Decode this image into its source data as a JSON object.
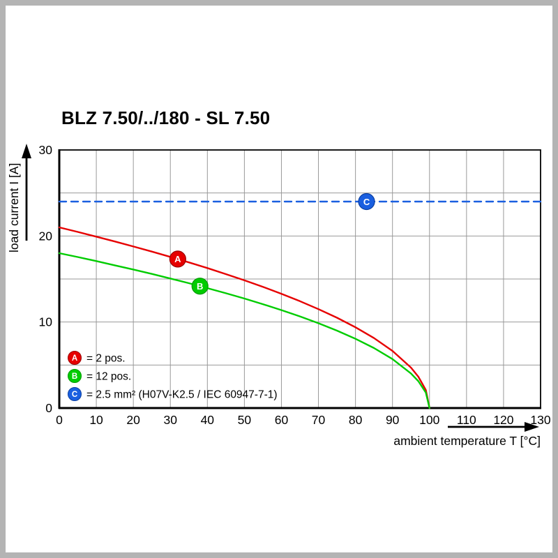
{
  "chart_data": {
    "type": "line",
    "title": "BLZ 7.50/../180 - SL 7.50",
    "xlabel": "ambient temperature T [°C]",
    "ylabel": "load current I [A]",
    "xlim": [
      0,
      130
    ],
    "ylim": [
      0,
      30
    ],
    "x_ticks": [
      0,
      10,
      20,
      30,
      40,
      50,
      60,
      70,
      80,
      90,
      100,
      110,
      120,
      130
    ],
    "y_ticks": [
      0,
      10,
      20,
      30
    ],
    "grid": {
      "x_step": 10,
      "y_step": 5,
      "color": "#999999",
      "on": true
    },
    "series": [
      {
        "id": "A",
        "name": "2 pos.",
        "color": "#e60000",
        "style": "solid",
        "x": [
          0,
          5,
          10,
          15,
          20,
          25,
          30,
          35,
          40,
          45,
          50,
          55,
          60,
          65,
          70,
          75,
          80,
          85,
          90,
          95,
          97,
          99,
          100
        ],
        "y": [
          21,
          20.47,
          19.92,
          19.36,
          18.78,
          18.19,
          17.57,
          16.93,
          16.27,
          15.57,
          14.85,
          14.09,
          13.28,
          12.42,
          11.5,
          10.5,
          9.39,
          8.13,
          6.64,
          4.7,
          3.64,
          2.1,
          0
        ]
      },
      {
        "id": "B",
        "name": "12 pos.",
        "color": "#00cc00",
        "style": "solid",
        "x": [
          0,
          5,
          10,
          15,
          20,
          25,
          30,
          35,
          40,
          45,
          50,
          55,
          60,
          65,
          70,
          75,
          80,
          85,
          90,
          95,
          97,
          99,
          100
        ],
        "y": [
          18,
          17.55,
          17.08,
          16.59,
          16.1,
          15.59,
          15.06,
          14.51,
          13.94,
          13.35,
          12.73,
          12.07,
          11.38,
          10.65,
          9.86,
          9,
          8.05,
          6.97,
          5.69,
          4.02,
          3.12,
          1.8,
          0
        ]
      },
      {
        "id": "C",
        "name": "2.5 mm² (H07V-K2.5 / IEC 60947-7-1)",
        "color": "#1a5fe0",
        "style": "dashed",
        "x": [
          0,
          130
        ],
        "y": [
          24,
          24
        ]
      }
    ],
    "markers": [
      {
        "label": "A",
        "x": 32,
        "y": 17.32,
        "color": "#e60000",
        "ring": "#990000"
      },
      {
        "label": "B",
        "x": 38,
        "y": 14.17,
        "color": "#00cc00",
        "ring": "#009900"
      },
      {
        "label": "C",
        "x": 83,
        "y": 24,
        "color": "#1a5fe0",
        "ring": "#0b3fa0"
      }
    ],
    "legend": [
      {
        "label": "A",
        "color": "#e60000",
        "ring": "#990000",
        "text": "= 2 pos."
      },
      {
        "label": "B",
        "color": "#00cc00",
        "ring": "#009900",
        "text": "= 12 pos."
      },
      {
        "label": "C",
        "color": "#1a5fe0",
        "ring": "#0b3fa0",
        "text": "= 2.5 mm² (H07V-K2.5 / IEC 60947-7-1)"
      }
    ],
    "legend_position": "lower-left"
  }
}
